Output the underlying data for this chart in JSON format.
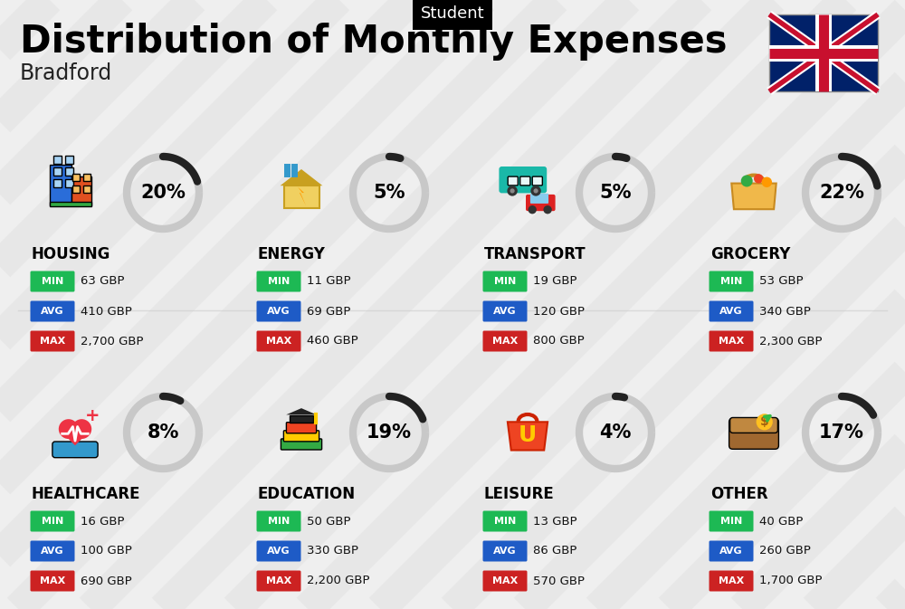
{
  "title": "Distribution of Monthly Expenses",
  "subtitle": "Bradford",
  "header_label": "Student",
  "bg_color": "#efefef",
  "categories": [
    {
      "name": "HOUSING",
      "pct": 20,
      "min_val": "63 GBP",
      "avg_val": "410 GBP",
      "max_val": "2,700 GBP",
      "row": 0,
      "col": 0
    },
    {
      "name": "ENERGY",
      "pct": 5,
      "min_val": "11 GBP",
      "avg_val": "69 GBP",
      "max_val": "460 GBP",
      "row": 0,
      "col": 1
    },
    {
      "name": "TRANSPORT",
      "pct": 5,
      "min_val": "19 GBP",
      "avg_val": "120 GBP",
      "max_val": "800 GBP",
      "row": 0,
      "col": 2
    },
    {
      "name": "GROCERY",
      "pct": 22,
      "min_val": "53 GBP",
      "avg_val": "340 GBP",
      "max_val": "2,300 GBP",
      "row": 0,
      "col": 3
    },
    {
      "name": "HEALTHCARE",
      "pct": 8,
      "min_val": "16 GBP",
      "avg_val": "100 GBP",
      "max_val": "690 GBP",
      "row": 1,
      "col": 0
    },
    {
      "name": "EDUCATION",
      "pct": 19,
      "min_val": "50 GBP",
      "avg_val": "330 GBP",
      "max_val": "2,200 GBP",
      "row": 1,
      "col": 1
    },
    {
      "name": "LEISURE",
      "pct": 4,
      "min_val": "13 GBP",
      "avg_val": "86 GBP",
      "max_val": "570 GBP",
      "row": 1,
      "col": 2
    },
    {
      "name": "OTHER",
      "pct": 17,
      "min_val": "40 GBP",
      "avg_val": "260 GBP",
      "max_val": "1,700 GBP",
      "row": 1,
      "col": 3
    }
  ],
  "min_color": "#1db954",
  "avg_color": "#1e5bc6",
  "max_color": "#cc2222",
  "stripe_color": "#e0e0e0",
  "circle_gray": "#c8c8c8",
  "circle_dark": "#222222"
}
